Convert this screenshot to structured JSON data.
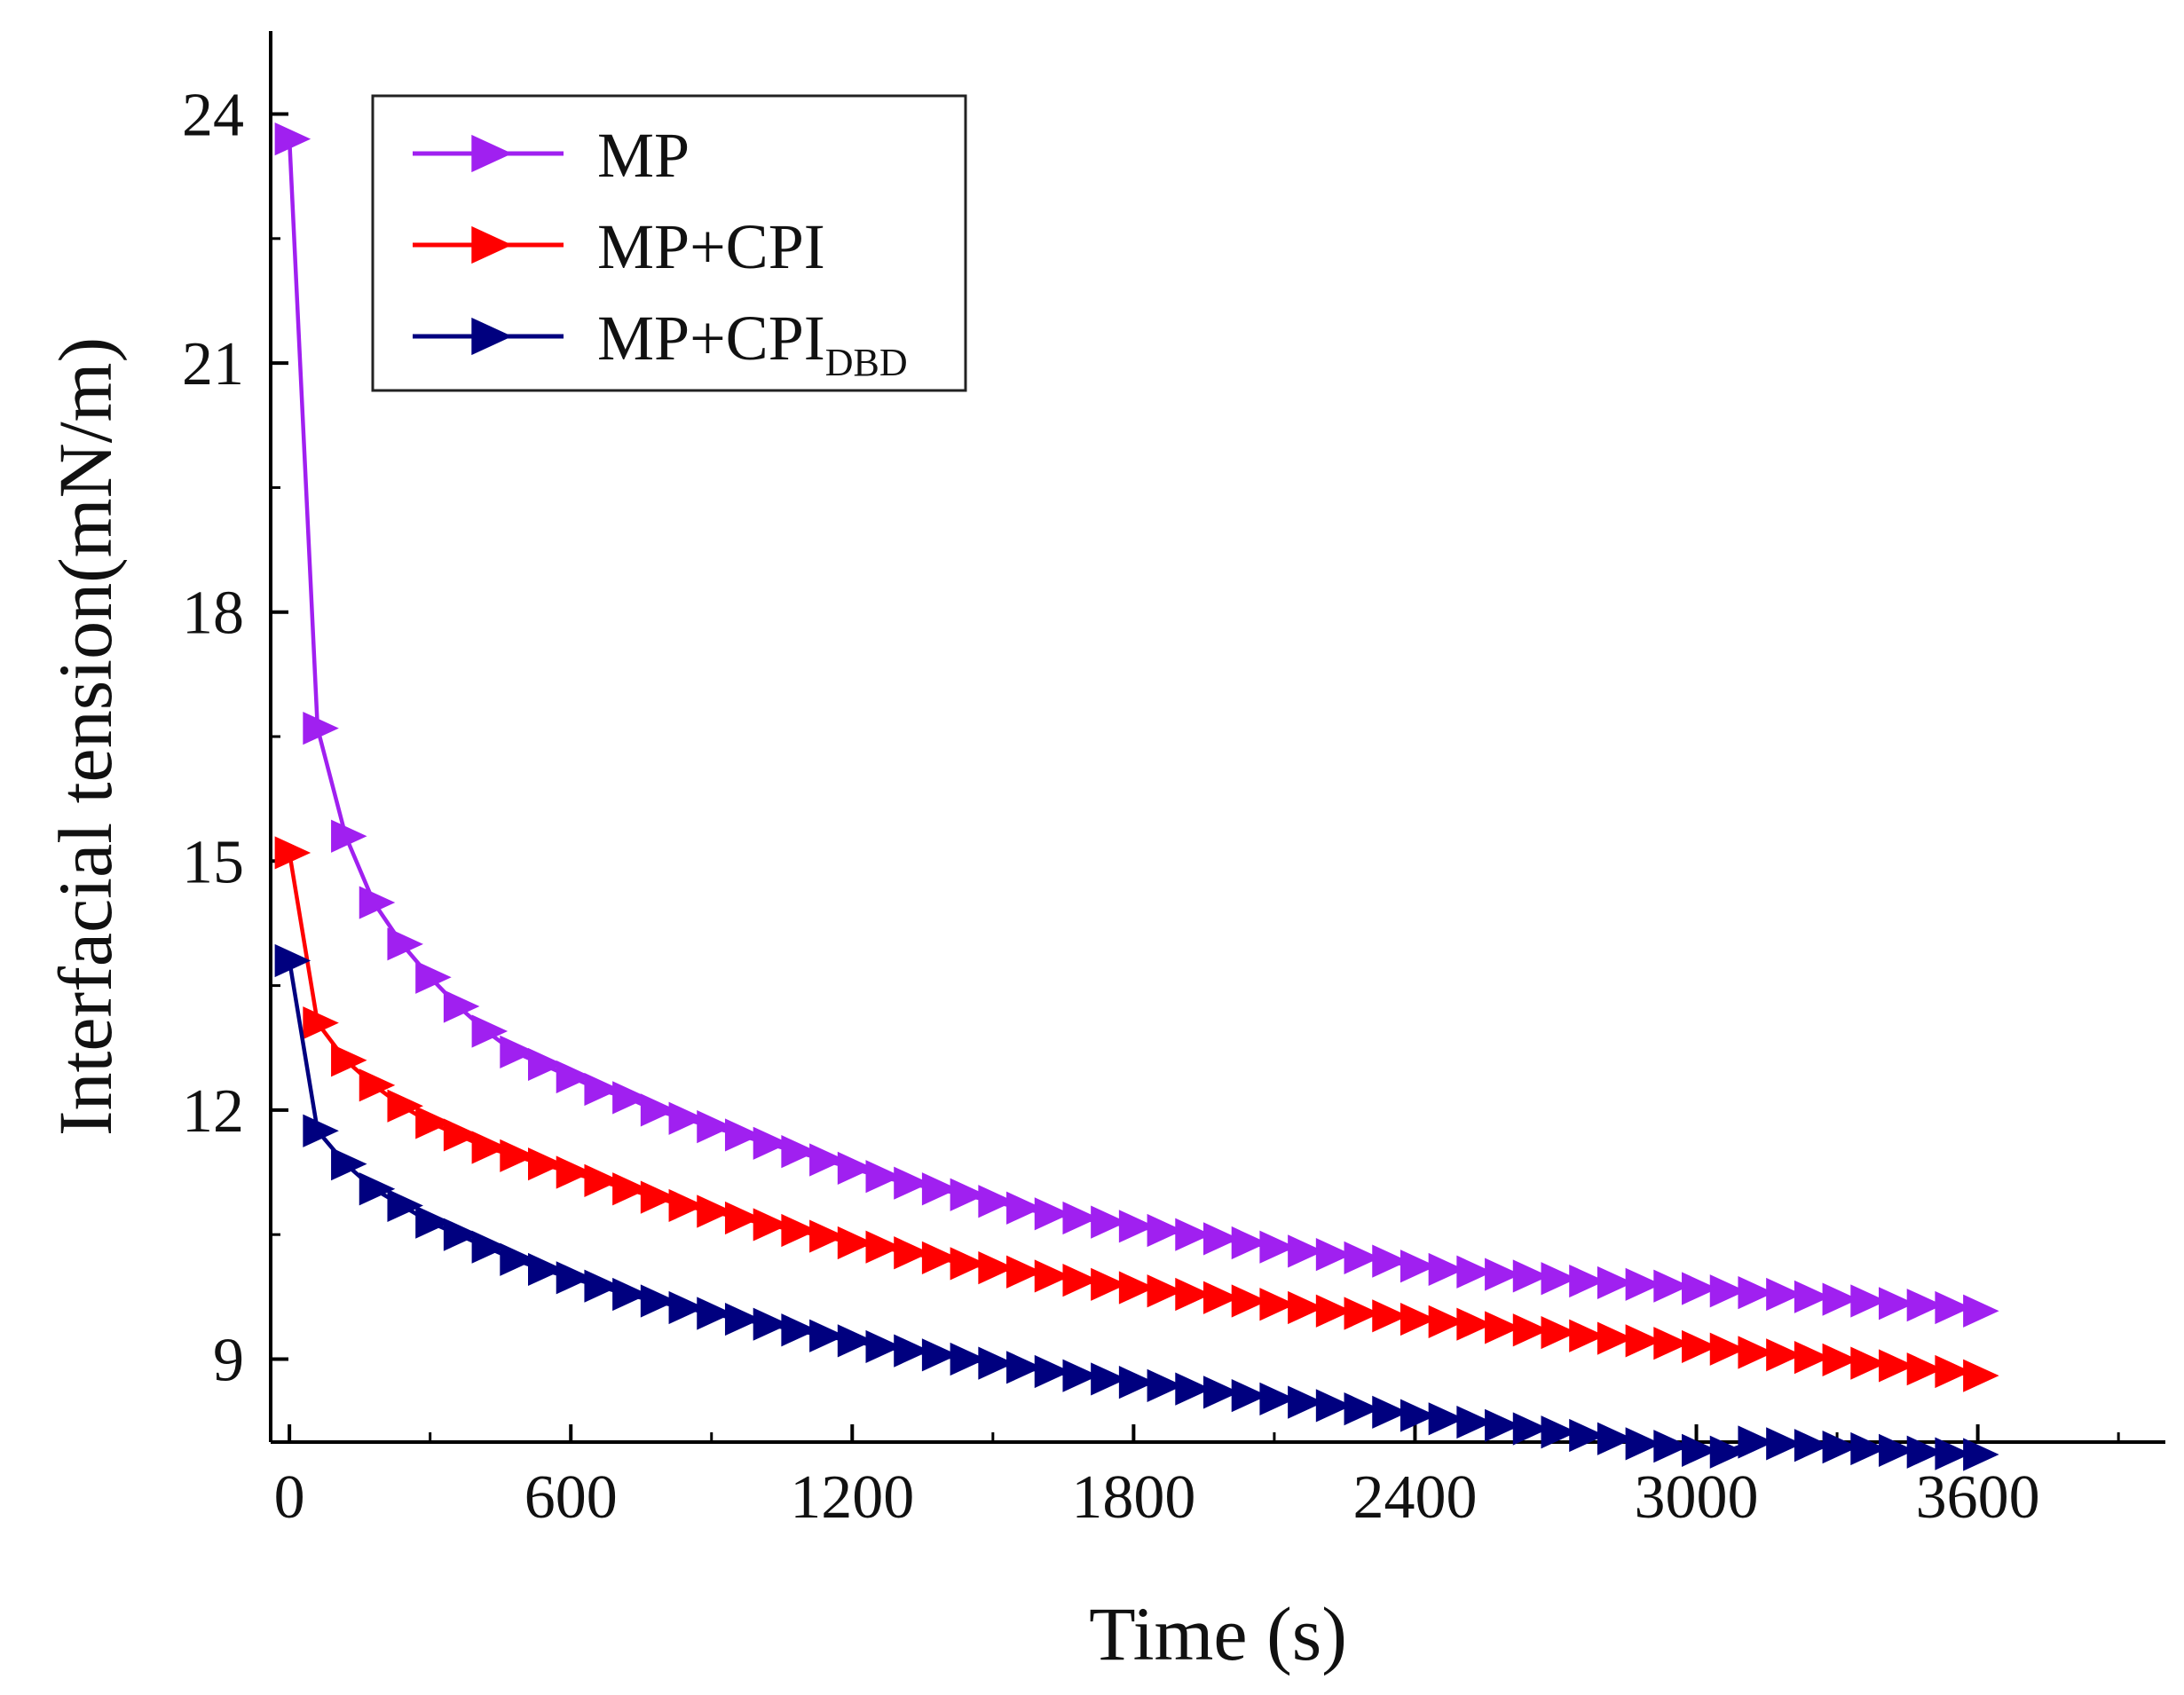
{
  "chart_data": {
    "type": "line",
    "title": "",
    "xlabel": "Time (s)",
    "ylabel": "Interfacial tension(mN/m)",
    "xlim": [
      -40,
      4000
    ],
    "ylim": [
      8.0,
      25.0
    ],
    "xticks": [
      0,
      600,
      1200,
      1800,
      2400,
      3000,
      3600
    ],
    "yticks": [
      9,
      12,
      15,
      18,
      21,
      24
    ],
    "legend_position": "top-left",
    "series": [
      {
        "name": "MP",
        "legend_main": "MP",
        "legend_sub": "",
        "color": "#a020f0",
        "x": [
          0,
          60,
          120,
          180,
          240,
          300,
          360,
          420,
          480,
          540,
          600,
          660,
          720,
          780,
          840,
          900,
          960,
          1020,
          1080,
          1140,
          1200,
          1260,
          1320,
          1380,
          1440,
          1500,
          1560,
          1620,
          1680,
          1740,
          1800,
          1860,
          1920,
          1980,
          2040,
          2100,
          2160,
          2220,
          2280,
          2340,
          2400,
          2460,
          2520,
          2580,
          2640,
          2700,
          2760,
          2820,
          2880,
          2940,
          3000,
          3060,
          3120,
          3180,
          3240,
          3300,
          3360,
          3420,
          3480,
          3540,
          3600
        ],
        "values": [
          23.7,
          16.6,
          15.3,
          14.5,
          14.0,
          13.6,
          13.25,
          12.95,
          12.7,
          12.55,
          12.4,
          12.25,
          12.15,
          12.0,
          11.9,
          11.8,
          11.7,
          11.6,
          11.5,
          11.4,
          11.3,
          11.2,
          11.12,
          11.05,
          10.98,
          10.9,
          10.82,
          10.75,
          10.7,
          10.65,
          10.6,
          10.55,
          10.5,
          10.45,
          10.4,
          10.35,
          10.3,
          10.26,
          10.22,
          10.18,
          10.12,
          10.08,
          10.05,
          10.02,
          10.0,
          9.97,
          9.94,
          9.92,
          9.9,
          9.88,
          9.85,
          9.82,
          9.8,
          9.78,
          9.75,
          9.72,
          9.7,
          9.67,
          9.65,
          9.62,
          9.58
        ]
      },
      {
        "name": "MP+CPI",
        "legend_main": "MP+CPI",
        "legend_sub": "",
        "color": "#ff0000",
        "x": [
          0,
          60,
          120,
          180,
          240,
          300,
          360,
          420,
          480,
          540,
          600,
          660,
          720,
          780,
          840,
          900,
          960,
          1020,
          1080,
          1140,
          1200,
          1260,
          1320,
          1380,
          1440,
          1500,
          1560,
          1620,
          1680,
          1740,
          1800,
          1860,
          1920,
          1980,
          2040,
          2100,
          2160,
          2220,
          2280,
          2340,
          2400,
          2460,
          2520,
          2580,
          2640,
          2700,
          2760,
          2820,
          2880,
          2940,
          3000,
          3060,
          3120,
          3180,
          3240,
          3300,
          3360,
          3420,
          3480,
          3540,
          3600
        ],
        "values": [
          15.1,
          13.05,
          12.6,
          12.3,
          12.05,
          11.85,
          11.7,
          11.55,
          11.45,
          11.35,
          11.25,
          11.15,
          11.05,
          10.95,
          10.85,
          10.78,
          10.7,
          10.62,
          10.55,
          10.48,
          10.4,
          10.35,
          10.28,
          10.22,
          10.15,
          10.1,
          10.05,
          10.0,
          9.95,
          9.9,
          9.86,
          9.82,
          9.78,
          9.74,
          9.7,
          9.66,
          9.62,
          9.58,
          9.55,
          9.52,
          9.48,
          9.45,
          9.42,
          9.38,
          9.35,
          9.32,
          9.28,
          9.25,
          9.22,
          9.19,
          9.15,
          9.12,
          9.08,
          9.05,
          9.02,
          8.99,
          8.95,
          8.92,
          8.88,
          8.85,
          8.8
        ]
      },
      {
        "name": "MP+CPI_DBD",
        "legend_main": "MP+CPI",
        "legend_sub": "DBD",
        "color": "#00007f",
        "x": [
          0,
          60,
          120,
          180,
          240,
          300,
          360,
          420,
          480,
          540,
          600,
          660,
          720,
          780,
          840,
          900,
          960,
          1020,
          1080,
          1140,
          1200,
          1260,
          1320,
          1380,
          1440,
          1500,
          1560,
          1620,
          1680,
          1740,
          1800,
          1860,
          1920,
          1980,
          2040,
          2100,
          2160,
          2220,
          2280,
          2340,
          2400,
          2460,
          2520,
          2580,
          2640,
          2700,
          2760,
          2820,
          2880,
          2940,
          3000,
          3060,
          3120,
          3180,
          3240,
          3300,
          3360,
          3420,
          3480,
          3540,
          3600
        ],
        "values": [
          13.8,
          11.75,
          11.35,
          11.05,
          10.85,
          10.65,
          10.5,
          10.35,
          10.2,
          10.08,
          9.98,
          9.88,
          9.78,
          9.7,
          9.62,
          9.55,
          9.48,
          9.42,
          9.35,
          9.28,
          9.22,
          9.15,
          9.1,
          9.05,
          9.0,
          8.95,
          8.9,
          8.85,
          8.8,
          8.76,
          8.72,
          8.68,
          8.64,
          8.6,
          8.56,
          8.52,
          8.48,
          8.44,
          8.4,
          8.36,
          8.32,
          8.28,
          8.24,
          8.2,
          8.16,
          8.12,
          8.08,
          8.04,
          7.98,
          7.95,
          7.9,
          7.88,
          8.0,
          7.98,
          7.96,
          7.94,
          7.92,
          7.9,
          7.88,
          7.86,
          7.85
        ]
      }
    ]
  }
}
